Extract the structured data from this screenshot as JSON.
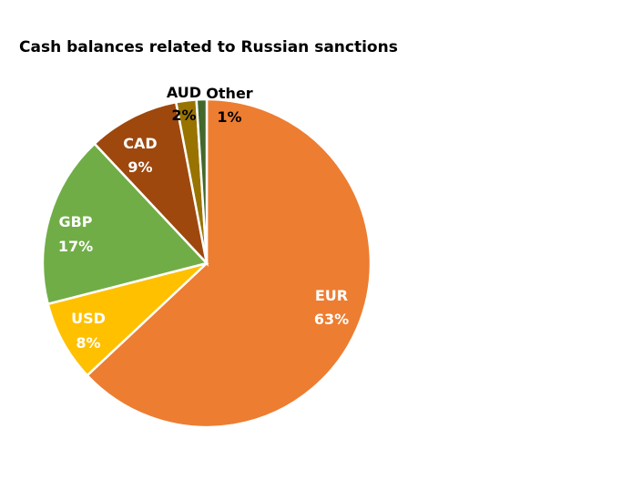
{
  "chart_data": {
    "type": "pie",
    "title": "Cash balances related to Russian sanctions",
    "categories": [
      "EUR",
      "USD",
      "GBP",
      "CAD",
      "AUD",
      "Other"
    ],
    "values": [
      63,
      8,
      17,
      9,
      2,
      1
    ],
    "labels": [
      "63%",
      "8%",
      "17%",
      "9%",
      "2%",
      "1%"
    ],
    "colors": [
      "#ED7D31",
      "#FFC000",
      "#70AD47",
      "#9E480E",
      "#997300",
      "#43682B"
    ],
    "label_colors": [
      "#ffffff",
      "#ffffff",
      "#ffffff",
      "#ffffff",
      "#000000",
      "#000000"
    ],
    "start": "top",
    "direction": "clockwise",
    "legend": "none"
  }
}
